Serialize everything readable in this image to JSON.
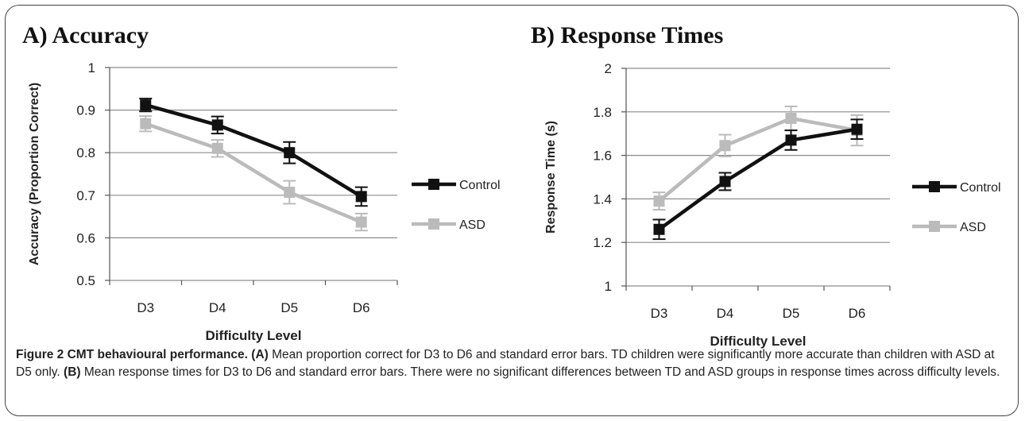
{
  "chart_data": [
    {
      "type": "line",
      "title": "A) Accuracy",
      "xlabel": "Difficulty Level",
      "ylabel": "Accuracy (Proportion Correct)",
      "categories": [
        "D3",
        "D4",
        "D5",
        "D6"
      ],
      "ylim": [
        0.5,
        1
      ],
      "yticks": [
        0.5,
        0.6,
        0.7,
        0.8,
        0.9,
        1
      ],
      "ytick_labels": [
        "0.5",
        "0.6",
        "0.7",
        "0.8",
        "0.9",
        "1"
      ],
      "grid": true,
      "legend": "right",
      "series": [
        {
          "name": "Control",
          "color": "#111111",
          "values": [
            0.912,
            0.865,
            0.8,
            0.697
          ],
          "errors": [
            0.015,
            0.02,
            0.025,
            0.022
          ]
        },
        {
          "name": "ASD",
          "color": "#bbbbbb",
          "values": [
            0.868,
            0.81,
            0.707,
            0.637
          ],
          "errors": [
            0.018,
            0.02,
            0.027,
            0.02
          ]
        }
      ]
    },
    {
      "type": "line",
      "title": "B) Response Times",
      "xlabel": "Difficulty Level",
      "ylabel": "Response Time (s)",
      "categories": [
        "D3",
        "D4",
        "D5",
        "D6"
      ],
      "ylim": [
        1,
        2
      ],
      "yticks": [
        1,
        1.2,
        1.4,
        1.6,
        1.8,
        2
      ],
      "ytick_labels": [
        "1",
        "1.2",
        "1.4",
        "1.6",
        "1.8",
        "2"
      ],
      "grid": true,
      "legend": "right",
      "series": [
        {
          "name": "Control",
          "color": "#111111",
          "values": [
            1.26,
            1.48,
            1.67,
            1.72
          ],
          "errors": [
            0.045,
            0.04,
            0.045,
            0.045
          ]
        },
        {
          "name": "ASD",
          "color": "#bbbbbb",
          "values": [
            1.39,
            1.645,
            1.77,
            1.715
          ],
          "errors": [
            0.04,
            0.05,
            0.055,
            0.07
          ]
        }
      ]
    }
  ],
  "caption": {
    "figure_label": "Figure 2 CMT behavioural performance.",
    "part_a_label": "(A)",
    "part_a_text": " Mean proportion correct for D3 to D6 and standard error bars. TD children were significantly more accurate than children with ASD at D5 only. ",
    "part_b_label": "(B)",
    "part_b_text": " Mean response times for D3 to D6 and standard error bars. There were no significant differences between TD and ASD groups in response times across difficulty levels."
  }
}
